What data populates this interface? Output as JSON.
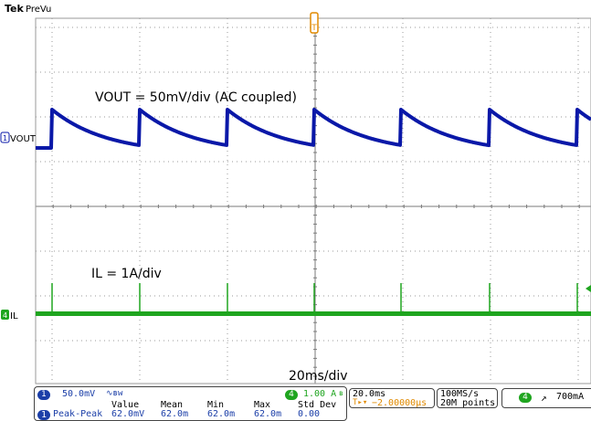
{
  "header": {
    "brand": "Tek",
    "mode": "PreVu"
  },
  "trigger_marker": "T",
  "waveforms": {
    "vout": {
      "channel": "1",
      "label": "VOUT",
      "color": "#0a18a8",
      "note": "VOUT = 50mV/div (AC coupled)"
    },
    "il": {
      "channel": "4",
      "label": "IL",
      "color": "#1fa51f",
      "note": "IL = 1A/div"
    }
  },
  "timebase_note": "20ms/div",
  "status_bar": {
    "ch1": {
      "channel": "1",
      "scale": "50.0mV",
      "bw_icon": "bandwidth-limit-icon"
    },
    "ch4": {
      "channel": "4",
      "scale": "1.00 A",
      "bw_icon": "bandwidth-limit-icon"
    },
    "horizontal": {
      "scale": "20.0ms",
      "delay_icon": "trigger-position-icon",
      "delay": "−2.00000µs"
    },
    "acquisition": {
      "rate": "100MS/s",
      "points": "20M points"
    },
    "trigger": {
      "channel": "4",
      "slope_icon": "rising-edge-icon",
      "level": "700mA"
    }
  },
  "measurements": {
    "headers": [
      "Value",
      "Mean",
      "Min",
      "Max",
      "Std Dev"
    ],
    "rows": [
      {
        "channel": "1",
        "name": "Peak-Peak",
        "value": "62.0mV",
        "mean": "62.0m",
        "min": "62.0m",
        "max": "62.0m",
        "std": "0.00"
      }
    ]
  },
  "colors": {
    "grid": "#9a9a9a",
    "ch1": "#0a18a8",
    "ch4": "#1fa51f",
    "trigger": "#e08a00",
    "status_blue": "#1c3fa8"
  }
}
